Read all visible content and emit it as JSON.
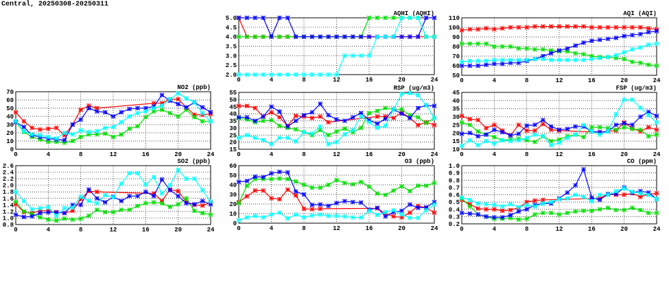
{
  "title": "Central, 20250308-20250311",
  "series_colors": {
    "red": "#ff0000",
    "green": "#00dd00",
    "blue": "#0000ff",
    "cyan": "#00ffff"
  },
  "chart_data": [
    {
      "id": "aqhi",
      "type": "line",
      "title": "AQHI (AQHI)",
      "ylim": [
        2,
        5
      ],
      "yticks": [
        "2.0",
        "2.5",
        "3.0",
        "3.5",
        "4.0",
        "4.5",
        "5.0"
      ],
      "xlim": [
        0,
        24
      ],
      "xticks": [
        "0",
        "4",
        "8",
        "12",
        "16",
        "20",
        "24"
      ],
      "grid": true,
      "series": [
        {
          "name": "red",
          "values": [
            5,
            4,
            4,
            4,
            4,
            4,
            4,
            4,
            4,
            4,
            4,
            4,
            4,
            4,
            4,
            4,
            4,
            4,
            4,
            4,
            4,
            4,
            4,
            4,
            4
          ]
        },
        {
          "name": "green",
          "values": [
            4,
            4,
            4,
            4,
            4,
            4,
            4,
            4,
            4,
            4,
            4,
            4,
            4,
            4,
            4,
            4,
            5,
            5,
            5,
            5,
            5,
            5,
            5,
            4,
            4
          ]
        },
        {
          "name": "blue",
          "values": [
            5,
            5,
            5,
            5,
            4,
            5,
            5,
            4,
            4,
            4,
            4,
            4,
            4,
            4,
            4,
            4,
            4,
            4,
            4,
            4,
            4,
            4,
            4,
            5,
            5
          ]
        },
        {
          "name": "cyan",
          "values": [
            2,
            2,
            2,
            2,
            2,
            2,
            2,
            2,
            2,
            2,
            2,
            2,
            2,
            3,
            3,
            3,
            3,
            4,
            4,
            4,
            5,
            5,
            5,
            4,
            4
          ]
        }
      ]
    },
    {
      "id": "aqi",
      "type": "line",
      "title": "AQI (AQI)",
      "ylim": [
        50,
        110
      ],
      "yticks": [
        "50",
        "60",
        "70",
        "80",
        "90",
        "100",
        "110"
      ],
      "xlim": [
        0,
        24
      ],
      "xticks": [
        "0",
        "4",
        "8",
        "12",
        "16",
        "20",
        "24"
      ],
      "grid": true,
      "series": [
        {
          "name": "red",
          "values": [
            97,
            98,
            98,
            99,
            98,
            99,
            100,
            100,
            100,
            101,
            101,
            101,
            101,
            101,
            101,
            101,
            100,
            100,
            100,
            100,
            100,
            100,
            100,
            99,
            98
          ]
        },
        {
          "name": "green",
          "values": [
            83,
            83,
            83,
            83,
            80,
            80,
            80,
            78,
            78,
            77,
            77,
            76,
            75,
            75,
            73,
            72,
            70,
            69,
            69,
            68,
            67,
            64,
            63,
            61,
            60
          ]
        },
        {
          "name": "blue",
          "values": [
            60,
            60,
            60,
            61,
            62,
            62,
            63,
            63,
            65,
            67,
            70,
            73,
            76,
            78,
            81,
            84,
            86,
            87,
            88,
            89,
            91,
            92,
            93,
            95,
            96
          ]
        },
        {
          "name": "cyan",
          "values": [
            64,
            65,
            65,
            65,
            66,
            66,
            66,
            66,
            66,
            67,
            67,
            66,
            66,
            66,
            66,
            66,
            67,
            68,
            69,
            71,
            74,
            77,
            79,
            82,
            83
          ]
        }
      ]
    },
    {
      "id": "no2",
      "type": "line",
      "title": "NO2 (ppb)",
      "ylim": [
        0,
        70
      ],
      "yticks": [
        "0",
        "10",
        "20",
        "30",
        "40",
        "50",
        "60",
        "70"
      ],
      "xlim": [
        0,
        24
      ],
      "xticks": [
        "0",
        "4",
        "8",
        "12",
        "16",
        "20",
        "24"
      ],
      "grid": true,
      "series": [
        {
          "name": "red",
          "values": [
            45,
            34,
            26,
            24,
            25,
            26,
            17,
            30,
            48,
            53,
            50,
            null,
            null,
            null,
            null,
            null,
            null,
            56,
            56,
            61,
            61,
            51,
            42,
            42,
            43
          ]
        },
        {
          "name": "green",
          "values": [
            33,
            21,
            15,
            12,
            9,
            9,
            8,
            10,
            15,
            18,
            18,
            19,
            15,
            18,
            25,
            28,
            39,
            46,
            48,
            44,
            40,
            48,
            39,
            34,
            34
          ]
        },
        {
          "name": "blue",
          "values": [
            33,
            27,
            17,
            15,
            13,
            12,
            11,
            30,
            36,
            50,
            46,
            45,
            40,
            45,
            49,
            50,
            50,
            52,
            66,
            59,
            55,
            51,
            57,
            51,
            45
          ]
        },
        {
          "name": "cyan",
          "values": [
            34,
            22,
            18,
            17,
            15,
            13,
            20,
            18,
            23,
            21,
            22,
            26,
            27,
            33,
            40,
            44,
            46,
            50,
            53,
            61,
            68,
            62,
            57,
            44,
            34
          ]
        }
      ]
    },
    {
      "id": "rsp",
      "type": "line",
      "title": "RSP (ug/m3)",
      "ylim": [
        15,
        55
      ],
      "yticks": [
        "15",
        "20",
        "25",
        "30",
        "35",
        "40",
        "45",
        "50",
        "55"
      ],
      "xlim": [
        0,
        24
      ],
      "xticks": [
        "0",
        "4",
        "8",
        "12",
        "16",
        "20",
        "24"
      ],
      "grid": true,
      "series": [
        {
          "name": "red",
          "values": [
            45.5,
            45.5,
            44,
            38,
            41,
            37.5,
            31.5,
            38.5,
            38,
            37,
            38,
            34,
            null,
            null,
            null,
            null,
            null,
            38,
            38,
            37,
            41,
            37,
            32,
            34,
            32
          ]
        },
        {
          "name": "green",
          "values": [
            37,
            36,
            34,
            35,
            35.5,
            31.5,
            30,
            29,
            27,
            25,
            28.5,
            25,
            27.5,
            29.5,
            27,
            30,
            40.5,
            42,
            44,
            43,
            43,
            39,
            37.5,
            33.5,
            37
          ]
        },
        {
          "name": "blue",
          "values": [
            37.5,
            37.5,
            35,
            38,
            45,
            41.5,
            31,
            35,
            39,
            41,
            47,
            39,
            36,
            35,
            37.5,
            40.5,
            35.5,
            33,
            36.5,
            43,
            40,
            37,
            44,
            46,
            45.5
          ]
        },
        {
          "name": "cyan",
          "values": [
            23,
            25,
            23,
            21.5,
            18.5,
            23,
            23,
            20.5,
            27,
            26,
            31,
            18.5,
            20,
            25.5,
            28.5,
            38,
            34,
            30,
            31.5,
            43,
            54,
            54.5,
            53,
            46,
            37
          ]
        }
      ]
    },
    {
      "id": "fsp",
      "type": "line",
      "title": "FSP (ug/m3)",
      "ylim": [
        10,
        45
      ],
      "yticks": [
        "10",
        "15",
        "20",
        "25",
        "30",
        "35",
        "40",
        "45"
      ],
      "xlim": [
        0,
        24
      ],
      "xticks": [
        "0",
        "4",
        "8",
        "12",
        "16",
        "20",
        "24"
      ],
      "grid": true,
      "series": [
        {
          "name": "red",
          "values": [
            30.5,
            28.5,
            28,
            23,
            25,
            21.5,
            18.5,
            25,
            21.5,
            21.5,
            25.5,
            22,
            21.5,
            null,
            null,
            null,
            null,
            20.5,
            21,
            21.5,
            26.5,
            23,
            21,
            23.5,
            22
          ]
        },
        {
          "name": "green",
          "values": [
            26.5,
            25,
            21,
            19,
            17.5,
            15.5,
            16,
            16.5,
            15.5,
            14.5,
            18,
            15,
            16,
            18,
            19,
            17.5,
            23.5,
            23.5,
            23,
            22,
            23.5,
            22.5,
            22,
            18,
            19
          ]
        },
        {
          "name": "blue",
          "values": [
            19.5,
            20,
            18,
            19,
            22,
            20.5,
            18.5,
            19.5,
            24.5,
            25,
            28,
            24,
            22,
            22.5,
            24,
            24,
            21,
            20.5,
            21,
            25,
            26,
            25,
            30,
            33,
            30.5
          ]
        },
        {
          "name": "cyan",
          "values": [
            12,
            15.5,
            12.5,
            15,
            13.5,
            15.5,
            15,
            15.5,
            17,
            19,
            18,
            12.5,
            14,
            17,
            19,
            25,
            21,
            19,
            21,
            31.5,
            40.5,
            40.5,
            35.5,
            31,
            26.5
          ]
        }
      ]
    },
    {
      "id": "so2",
      "type": "line",
      "title": "SO2 (ppb)",
      "ylim": [
        0.8,
        2.6
      ],
      "yticks": [
        "0.8",
        "1.0",
        "1.2",
        "1.4",
        "1.6",
        "1.8",
        "2.0",
        "2.2",
        "2.4",
        "2.6"
      ],
      "xlim": [
        0,
        24
      ],
      "xticks": [
        "0",
        "4",
        "8",
        "12",
        "16",
        "20",
        "24"
      ],
      "grid": true,
      "series": [
        {
          "name": "red",
          "values": [
            1.42,
            1.18,
            1.15,
            1.22,
            1.22,
            1.18,
            1.15,
            1.22,
            1.58,
            1.82,
            1.8,
            null,
            null,
            null,
            null,
            null,
            null,
            1.75,
            1.52,
            1.87,
            1.82,
            1.5,
            1.4,
            1.38,
            1.47
          ]
        },
        {
          "name": "green",
          "values": [
            1.5,
            1.2,
            1.12,
            1.02,
            0.95,
            0.92,
            0.98,
            0.95,
            0.98,
            1.07,
            1.25,
            1.18,
            1.18,
            1.25,
            1.25,
            1.37,
            1.45,
            1.48,
            1.45,
            1.34,
            1.42,
            1.6,
            1.22,
            1.15,
            1.1
          ]
        },
        {
          "name": "blue",
          "values": [
            1.1,
            1.03,
            1.05,
            1.15,
            1.17,
            1.17,
            1.15,
            1.4,
            1.4,
            1.87,
            1.6,
            1.48,
            1.65,
            1.52,
            1.67,
            1.67,
            1.8,
            1.67,
            2.18,
            1.85,
            1.67,
            1.45,
            1.42,
            1.52,
            1.42
          ]
        },
        {
          "name": "cyan",
          "values": [
            1.8,
            1.52,
            1.27,
            1.3,
            1.33,
            1.07,
            1.3,
            1.32,
            1.65,
            1.52,
            1.45,
            1.7,
            1.63,
            2.05,
            2.37,
            2.37,
            2.02,
            2.25,
            1.75,
            2.0,
            2.47,
            2.2,
            2.2,
            1.85,
            1.5
          ]
        }
      ]
    },
    {
      "id": "o3",
      "type": "line",
      "title": "O3 (ppb)",
      "ylim": [
        0,
        60
      ],
      "yticks": [
        "0",
        "10",
        "20",
        "30",
        "40",
        "50",
        "60"
      ],
      "xlim": [
        0,
        24
      ],
      "xticks": [
        "0",
        "4",
        "8",
        "12",
        "16",
        "20",
        "24"
      ],
      "grid": true,
      "series": [
        {
          "name": "red",
          "values": [
            22,
            28,
            34,
            34,
            26,
            25,
            35,
            29,
            15,
            14.5,
            15,
            null,
            null,
            null,
            null,
            null,
            null,
            15.5,
            10,
            7,
            6,
            11,
            18,
            16,
            11
          ]
        },
        {
          "name": "green",
          "values": [
            21,
            39,
            46,
            46,
            46,
            46.5,
            46,
            43.5,
            40,
            37,
            37,
            40,
            45,
            42,
            40.5,
            43,
            38,
            31,
            29.5,
            34,
            38.5,
            33.5,
            39,
            39,
            42
          ]
        },
        {
          "name": "blue",
          "values": [
            43,
            44,
            48.5,
            48,
            52,
            53.5,
            53,
            33,
            30,
            19,
            19.5,
            18,
            21,
            23,
            22,
            21.5,
            14,
            16,
            7,
            11.5,
            13,
            19.5,
            16,
            16.5,
            22
          ]
        },
        {
          "name": "cyan",
          "values": [
            3,
            6,
            7.5,
            6,
            9,
            11,
            5,
            9,
            6,
            8,
            9,
            7.5,
            7.5,
            7,
            6,
            6,
            13,
            8.5,
            11.5,
            13.5,
            9,
            5.5,
            5.5,
            13.5,
            19.5
          ]
        }
      ]
    },
    {
      "id": "co",
      "type": "line",
      "title": "CO (ppm)",
      "ylim": [
        0.2,
        1.0
      ],
      "yticks": [
        "0.2",
        "0.3",
        "0.4",
        "0.5",
        "0.6",
        "0.7",
        "0.8",
        "0.9",
        "1.0"
      ],
      "xlim": [
        0,
        24
      ],
      "xticks": [
        "0",
        "4",
        "8",
        "12",
        "16",
        "20",
        "24"
      ],
      "grid": true,
      "series": [
        {
          "name": "red",
          "values": [
            0.53,
            0.47,
            0.41,
            0.4,
            0.4,
            0.38,
            0.39,
            0.42,
            0.5,
            0.52,
            0.53,
            null,
            null,
            null,
            null,
            null,
            null,
            0.55,
            0.61,
            0.6,
            0.6,
            0.62,
            0.57,
            0.61,
            0.62
          ]
        },
        {
          "name": "green",
          "values": [
            0.55,
            0.44,
            0.33,
            0.3,
            0.27,
            0.27,
            0.28,
            0.26,
            0.27,
            0.33,
            0.35,
            0.35,
            0.33,
            0.35,
            0.37,
            0.38,
            0.38,
            0.4,
            0.42,
            0.39,
            0.39,
            0.42,
            0.39,
            0.35,
            0.35
          ]
        },
        {
          "name": "blue",
          "values": [
            0.35,
            0.34,
            0.33,
            0.3,
            0.29,
            0.29,
            0.32,
            0.37,
            0.4,
            0.46,
            0.48,
            0.48,
            0.55,
            0.63,
            0.73,
            0.95,
            0.56,
            0.53,
            0.61,
            0.61,
            0.7,
            0.63,
            0.65,
            0.63,
            0.54
          ]
        },
        {
          "name": "cyan",
          "values": [
            0.56,
            0.53,
            0.48,
            0.47,
            0.46,
            0.44,
            0.47,
            0.43,
            0.46,
            0.44,
            0.48,
            0.5,
            0.54,
            0.55,
            0.6,
            0.57,
            0.51,
            0.6,
            0.6,
            0.65,
            0.69,
            0.64,
            0.62,
            0.6,
            0.54
          ]
        }
      ]
    }
  ]
}
